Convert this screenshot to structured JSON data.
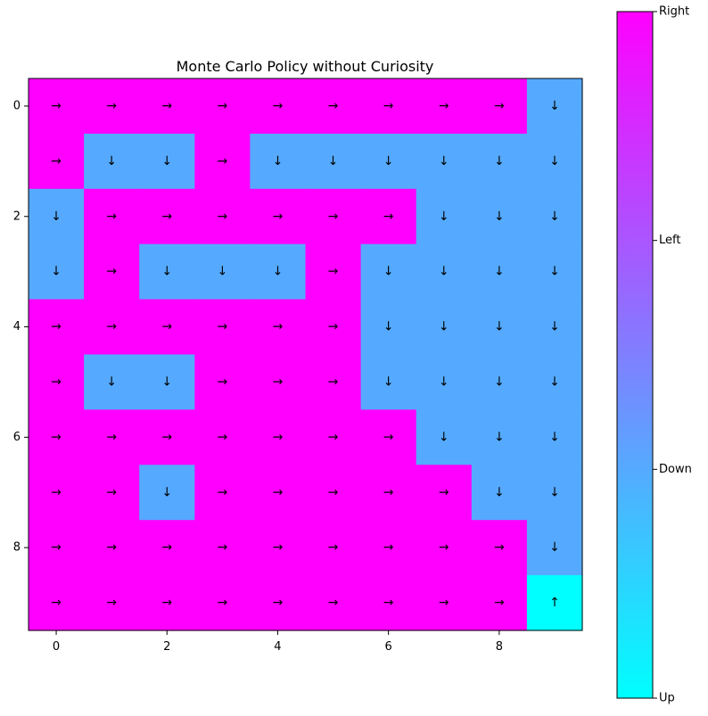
{
  "chart_data": {
    "type": "heatmap",
    "title": "Monte Carlo Policy without Curiosity",
    "xlabel": "",
    "ylabel": "",
    "grid": false,
    "rows": 10,
    "cols": 10,
    "x_ticks": [
      0,
      2,
      4,
      6,
      8
    ],
    "y_ticks": [
      0,
      2,
      4,
      6,
      8
    ],
    "actions": [
      "Up",
      "Down",
      "Left",
      "Right"
    ],
    "arrow_symbols": {
      "Up": "↑",
      "Down": "↓",
      "Left": "←",
      "Right": "→"
    },
    "policy": [
      [
        "Right",
        "Right",
        "Right",
        "Right",
        "Right",
        "Right",
        "Right",
        "Right",
        "Right",
        "Down"
      ],
      [
        "Right",
        "Down",
        "Down",
        "Right",
        "Down",
        "Down",
        "Down",
        "Down",
        "Down",
        "Down"
      ],
      [
        "Down",
        "Right",
        "Right",
        "Right",
        "Right",
        "Right",
        "Right",
        "Down",
        "Down",
        "Down"
      ],
      [
        "Down",
        "Right",
        "Down",
        "Down",
        "Down",
        "Right",
        "Down",
        "Down",
        "Down",
        "Down"
      ],
      [
        "Right",
        "Right",
        "Right",
        "Right",
        "Right",
        "Right",
        "Down",
        "Down",
        "Down",
        "Down"
      ],
      [
        "Right",
        "Down",
        "Down",
        "Right",
        "Right",
        "Right",
        "Down",
        "Down",
        "Down",
        "Down"
      ],
      [
        "Right",
        "Right",
        "Right",
        "Right",
        "Right",
        "Right",
        "Right",
        "Down",
        "Down",
        "Down"
      ],
      [
        "Right",
        "Right",
        "Down",
        "Right",
        "Right",
        "Right",
        "Right",
        "Right",
        "Down",
        "Down"
      ],
      [
        "Right",
        "Right",
        "Right",
        "Right",
        "Right",
        "Right",
        "Right",
        "Right",
        "Right",
        "Down"
      ],
      [
        "Right",
        "Right",
        "Right",
        "Right",
        "Right",
        "Right",
        "Right",
        "Right",
        "Right",
        "Up"
      ]
    ],
    "colormap": "cool",
    "action_colors": {
      "Up": "#00ffff",
      "Down": "#55aaff",
      "Left": "#aa55ff",
      "Right": "#ff00ff"
    },
    "colorbar": {
      "labels": [
        "Up",
        "Down",
        "Left",
        "Right"
      ],
      "gradient_start": "#00ffff",
      "gradient_end": "#ff00ff"
    }
  }
}
